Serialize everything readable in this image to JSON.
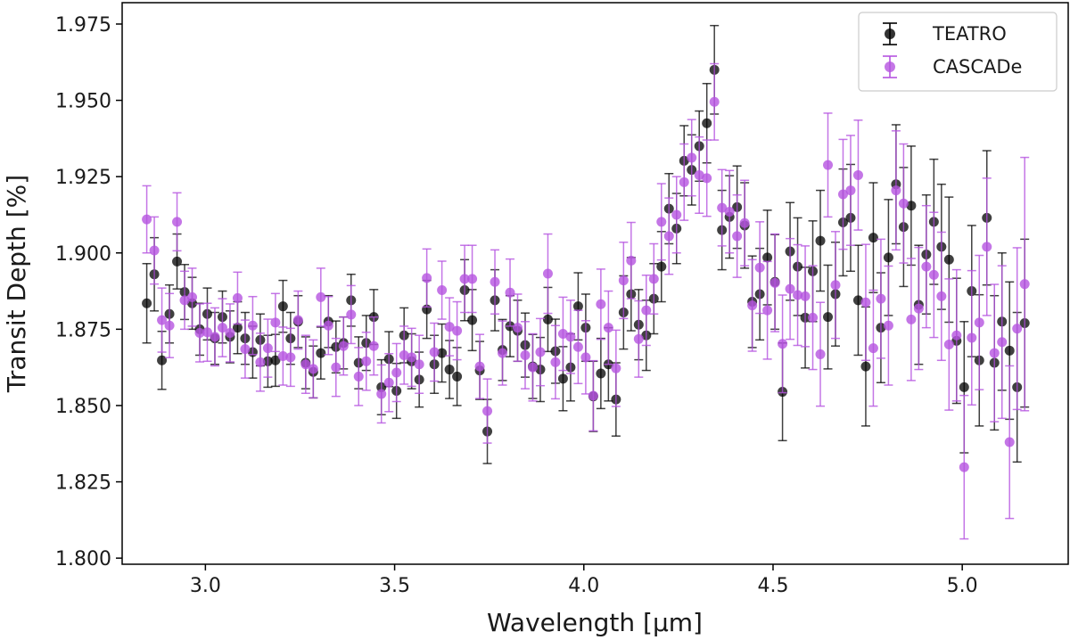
{
  "chart_data": {
    "type": "scatter",
    "title": "",
    "xlabel": "Wavelength [μm]",
    "ylabel": "Transit Depth [%]",
    "xlim": [
      2.78,
      5.28
    ],
    "ylim": [
      1.798,
      1.982
    ],
    "x_ticks": [
      3.0,
      3.5,
      4.0,
      4.5,
      5.0
    ],
    "x_tick_labels": [
      "3.0",
      "3.5",
      "4.0",
      "4.5",
      "5.0"
    ],
    "y_ticks": [
      1.8,
      1.825,
      1.85,
      1.875,
      1.9,
      1.925,
      1.95,
      1.975
    ],
    "y_tick_labels": [
      "1.800",
      "1.825",
      "1.850",
      "1.875",
      "1.900",
      "1.925",
      "1.950",
      "1.975"
    ],
    "grid": false,
    "legend_position": "top-right",
    "x": [
      2.845,
      2.865,
      2.885,
      2.905,
      2.925,
      2.945,
      2.965,
      2.985,
      3.005,
      3.025,
      3.045,
      3.065,
      3.085,
      3.105,
      3.125,
      3.145,
      3.165,
      3.185,
      3.205,
      3.225,
      3.245,
      3.265,
      3.285,
      3.305,
      3.325,
      3.345,
      3.365,
      3.385,
      3.405,
      3.425,
      3.445,
      3.465,
      3.485,
      3.505,
      3.525,
      3.545,
      3.565,
      3.585,
      3.605,
      3.625,
      3.645,
      3.665,
      3.685,
      3.705,
      3.725,
      3.745,
      3.765,
      3.785,
      3.805,
      3.825,
      3.845,
      3.865,
      3.885,
      3.905,
      3.925,
      3.945,
      3.965,
      3.985,
      4.005,
      4.025,
      4.045,
      4.065,
      4.085,
      4.105,
      4.125,
      4.145,
      4.165,
      4.185,
      4.205,
      4.225,
      4.245,
      4.265,
      4.285,
      4.305,
      4.325,
      4.345,
      4.365,
      4.385,
      4.405,
      4.425,
      4.445,
      4.465,
      4.485,
      4.505,
      4.525,
      4.545,
      4.565,
      4.585,
      4.605,
      4.625,
      4.645,
      4.665,
      4.685,
      4.705,
      4.725,
      4.745,
      4.765,
      4.785,
      4.805,
      4.825,
      4.845,
      4.865,
      4.885,
      4.905,
      4.925,
      4.945,
      4.965,
      4.985,
      5.005,
      5.025,
      5.045,
      5.065,
      5.085,
      5.105,
      5.125,
      5.145,
      5.165
    ],
    "series": [
      {
        "name": "TEATRO",
        "color": "#000000",
        "values": [
          1.8835,
          1.893,
          1.8648,
          1.88,
          1.8972,
          1.8872,
          1.8835,
          1.875,
          1.88,
          1.872,
          1.879,
          1.8725,
          1.8755,
          1.872,
          1.8675,
          1.8715,
          1.8645,
          1.8648,
          1.8825,
          1.872,
          1.8775,
          1.864,
          1.861,
          1.8672,
          1.8775,
          1.8692,
          1.8705,
          1.8845,
          1.864,
          1.8705,
          1.879,
          1.856,
          1.8652,
          1.8548,
          1.873,
          1.8645,
          1.8585,
          1.8815,
          1.8635,
          1.8672,
          1.8618,
          1.8595,
          1.8878,
          1.878,
          1.8615,
          1.8415,
          1.8845,
          1.8682,
          1.876,
          1.8745,
          1.8698,
          1.8628,
          1.8618,
          1.8782,
          1.8678,
          1.8588,
          1.8625,
          1.8825,
          1.8755,
          1.853,
          1.8605,
          1.8635,
          1.852,
          1.8805,
          1.8865,
          1.8765,
          1.873,
          1.885,
          1.8955,
          1.9145,
          1.908,
          1.9302,
          1.9272,
          1.935,
          1.9425,
          1.96,
          1.9075,
          1.9118,
          1.915,
          1.909,
          1.884,
          1.8865,
          1.8985,
          1.8905,
          1.8545,
          1.9005,
          1.8955,
          1.8788,
          1.894,
          1.904,
          1.879,
          1.8865,
          1.91,
          1.9115,
          1.8845,
          1.8628,
          1.905,
          1.8755,
          1.8985,
          1.9225,
          1.9085,
          1.9155,
          1.883,
          1.8995,
          1.9102,
          1.902,
          1.8978,
          1.8712,
          1.856,
          1.8875,
          1.8648,
          1.9115,
          1.864,
          1.8775,
          1.868,
          1.856,
          1.877
        ],
        "errors": [
          0.013,
          0.012,
          0.0095,
          0.0095,
          0.009,
          0.009,
          0.0085,
          0.0085,
          0.0085,
          0.0085,
          0.0085,
          0.0085,
          0.0085,
          0.0085,
          0.0085,
          0.0085,
          0.0085,
          0.0085,
          0.0085,
          0.0085,
          0.0085,
          0.0085,
          0.0085,
          0.0085,
          0.0085,
          0.0085,
          0.0085,
          0.0085,
          0.0085,
          0.009,
          0.009,
          0.009,
          0.009,
          0.009,
          0.009,
          0.009,
          0.009,
          0.0095,
          0.0095,
          0.0095,
          0.0095,
          0.0095,
          0.01,
          0.01,
          0.0095,
          0.0105,
          0.01,
          0.01,
          0.01,
          0.01,
          0.0105,
          0.0105,
          0.0105,
          0.0105,
          0.0105,
          0.0105,
          0.011,
          0.011,
          0.011,
          0.0115,
          0.0115,
          0.012,
          0.012,
          0.012,
          0.012,
          0.0115,
          0.0115,
          0.0115,
          0.0115,
          0.0115,
          0.0115,
          0.0115,
          0.0115,
          0.0115,
          0.013,
          0.0145,
          0.013,
          0.0135,
          0.0135,
          0.014,
          0.015,
          0.015,
          0.0155,
          0.0155,
          0.016,
          0.016,
          0.016,
          0.0165,
          0.0165,
          0.0165,
          0.017,
          0.017,
          0.0175,
          0.0175,
          0.018,
          0.0195,
          0.018,
          0.018,
          0.019,
          0.0195,
          0.0195,
          0.0195,
          0.0195,
          0.0195,
          0.0205,
          0.0205,
          0.0205,
          0.0205,
          0.0215,
          0.0215,
          0.0215,
          0.022,
          0.022,
          0.0225,
          0.0225,
          0.0245,
          0.0275
        ]
      },
      {
        "name": "CASCADe",
        "color": "#b554e0",
        "values": [
          1.911,
          1.9008,
          1.878,
          1.8762,
          1.9102,
          1.8845,
          1.8855,
          1.8738,
          1.874,
          1.8725,
          1.8755,
          1.8738,
          1.8852,
          1.8685,
          1.8762,
          1.8642,
          1.8688,
          1.8772,
          1.8662,
          1.8658,
          1.878,
          1.8635,
          1.862,
          1.8855,
          1.8762,
          1.8625,
          1.8695,
          1.8798,
          1.8595,
          1.8645,
          1.8695,
          1.8538,
          1.8575,
          1.8608,
          1.8665,
          1.8658,
          1.8635,
          1.8918,
          1.8675,
          1.8878,
          1.8758,
          1.8745,
          1.8915,
          1.8915,
          1.8628,
          1.8482,
          1.8905,
          1.8672,
          1.887,
          1.8755,
          1.8665,
          1.8625,
          1.8675,
          1.8932,
          1.8642,
          1.8735,
          1.8725,
          1.8692,
          1.8658,
          1.8532,
          1.8832,
          1.8755,
          1.8622,
          1.891,
          1.8975,
          1.8718,
          1.8812,
          1.8915,
          1.9102,
          1.9055,
          1.9125,
          1.9232,
          1.9312,
          1.9255,
          1.9245,
          1.9495,
          1.9148,
          1.9135,
          1.9055,
          1.9098,
          1.8828,
          1.8952,
          1.8812,
          1.8902,
          1.8702,
          1.8882,
          1.8862,
          1.8858,
          1.8788,
          1.8668,
          1.9288,
          1.8895,
          1.9192,
          1.9205,
          1.9255,
          1.8838,
          1.8688,
          1.885,
          1.8762,
          1.9205,
          1.9162,
          1.8782,
          1.8818,
          1.8955,
          1.8928,
          1.8858,
          1.87,
          1.873,
          1.8298,
          1.8722,
          1.8772,
          1.902,
          1.8672,
          1.8708,
          1.838,
          1.8752,
          1.8898
        ],
        "errors": [
          0.011,
          0.011,
          0.0105,
          0.0105,
          0.0095,
          0.0095,
          0.0095,
          0.0095,
          0.0095,
          0.0095,
          0.0095,
          0.0095,
          0.0085,
          0.0095,
          0.0095,
          0.0095,
          0.0095,
          0.0095,
          0.0095,
          0.0095,
          0.0095,
          0.0095,
          0.0095,
          0.0095,
          0.0095,
          0.0095,
          0.0095,
          0.0095,
          0.0095,
          0.0095,
          0.0095,
          0.0095,
          0.0095,
          0.0095,
          0.0095,
          0.0095,
          0.0095,
          0.0095,
          0.0095,
          0.0095,
          0.0095,
          0.0095,
          0.011,
          0.011,
          0.0105,
          0.0105,
          0.0105,
          0.0105,
          0.011,
          0.011,
          0.011,
          0.011,
          0.011,
          0.013,
          0.012,
          0.012,
          0.012,
          0.012,
          0.012,
          0.0115,
          0.0115,
          0.012,
          0.0125,
          0.0125,
          0.0125,
          0.0125,
          0.0115,
          0.0115,
          0.0125,
          0.0125,
          0.0125,
          0.0125,
          0.0125,
          0.0125,
          0.0125,
          0.0125,
          0.0125,
          0.0135,
          0.0135,
          0.014,
          0.015,
          0.015,
          0.016,
          0.016,
          0.016,
          0.0165,
          0.0165,
          0.0165,
          0.017,
          0.017,
          0.017,
          0.0175,
          0.018,
          0.018,
          0.018,
          0.019,
          0.019,
          0.0195,
          0.0195,
          0.0195,
          0.0195,
          0.02,
          0.02,
          0.02,
          0.0205,
          0.021,
          0.0215,
          0.0215,
          0.0235,
          0.022,
          0.022,
          0.0225,
          0.0225,
          0.025,
          0.025,
          0.0265,
          0.0415
        ]
      }
    ]
  }
}
